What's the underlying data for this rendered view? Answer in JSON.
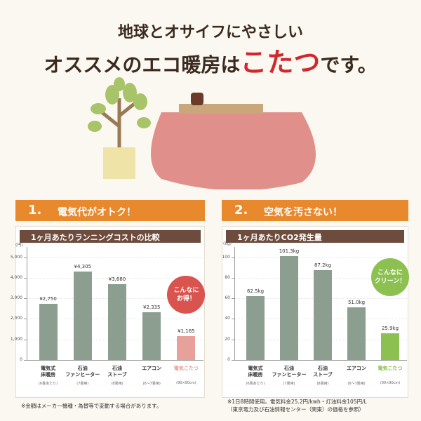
{
  "header": {
    "line1": "地球とオサイフにやさしい",
    "line2_pre": "オススメのエコ暖房は",
    "line2_em": "こたつ",
    "line2_post": "です。"
  },
  "sections": [
    {
      "number": "1.",
      "label": "電気代がオトク！"
    },
    {
      "number": "2.",
      "label": "空気を汚さない！"
    }
  ],
  "chart_data": [
    {
      "type": "bar",
      "title": "1ヶ月あたりランニングコストの比較",
      "unit_label": "(円)",
      "categories": [
        "電気式\n床暖房",
        "石油\nファンヒーター",
        "石油\nストーブ",
        "エアコン",
        "電気こたつ"
      ],
      "category_notes": [
        "(6畳あたり)",
        "(7畳用)",
        "(8畳用)",
        "(6〜7畳用)",
        "(90×90cm)"
      ],
      "values": [
        2750,
        4305,
        3680,
        2335,
        1165
      ],
      "value_labels": [
        "¥2,750",
        "¥4,305",
        "¥3,680",
        "¥2,335",
        "¥1,165"
      ],
      "colors": [
        "#8c9e90",
        "#8c9e90",
        "#8c9e90",
        "#8c9e90",
        "#e8a09a"
      ],
      "ylim": [
        0,
        5500
      ],
      "yticks": [
        0,
        {
          "value": 1000,
          "label": "1,000"
        },
        {
          "value": 2000,
          "label": "2,000"
        },
        {
          "value": 3000,
          "label": "3,000"
        },
        {
          "value": 4000,
          "label": "4,000"
        },
        {
          "value": 5000,
          "label": "5,000"
        }
      ],
      "grid": true,
      "annotation": {
        "text": "こんなに\nお得！",
        "color": "#d9534f"
      },
      "footnote": "※金額はメーカー機種・為替等で変動する場合があります。"
    },
    {
      "type": "bar",
      "title": "1ヶ月あたりCO2発生量",
      "unit_label": "(kg)",
      "categories": [
        "電気式\n床暖房",
        "石油\nファンヒーター",
        "石油\nストーブ",
        "エアコン",
        "電気こたつ"
      ],
      "category_notes": [
        "(6畳あたり)",
        "(7畳用)",
        "(8畳用)",
        "(6〜7畳用)",
        "(90×90cm)"
      ],
      "values": [
        62.5,
        101.3,
        87.2,
        51.0,
        25.9
      ],
      "value_labels": [
        "62.5kg",
        "101.3kg",
        "87.2kg",
        "51.0kg",
        "25.9kg"
      ],
      "colors": [
        "#8c9e90",
        "#8c9e90",
        "#8c9e90",
        "#8c9e90",
        "#8cc152"
      ],
      "ylim": [
        0,
        110
      ],
      "yticks": [
        0,
        20,
        40,
        60,
        80,
        100
      ],
      "grid": true,
      "annotation": {
        "text": "こんなに\nクリーン！",
        "color": "#8cc152"
      },
      "footnote": "※1日8時間使用。電気料金25.2円/kwh・灯油料金105円/L\n（東京電力及び石油情報センター（関東）の価格を参照）"
    }
  ]
}
